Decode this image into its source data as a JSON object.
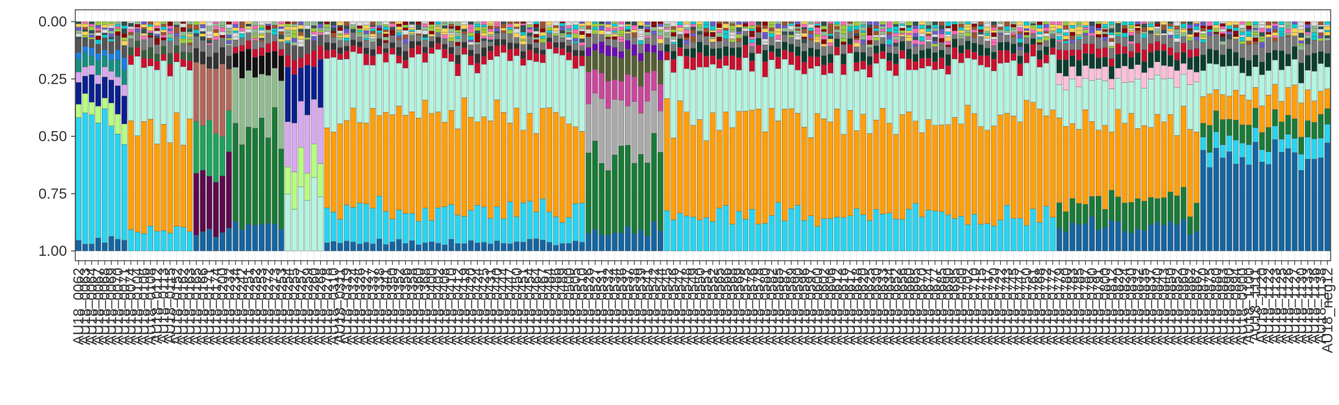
{
  "chart_data": {
    "type": "bar",
    "stacked": true,
    "title": "",
    "xlabel": "",
    "ylabel": "",
    "y_axis_reversed": true,
    "ylim": [
      0,
      1.05
    ],
    "y_ticks": [
      0.0,
      0.25,
      0.5,
      0.75,
      1.0
    ],
    "y_tick_labels": [
      "0.00",
      "0.25",
      "0.50",
      "0.75",
      "1.00"
    ],
    "grid": true,
    "legend": "none",
    "bar_count": 192,
    "x_tick_labels": [
      "AU18_0062",
      "AU18_0063",
      "AU18_0064",
      "AU18_0067",
      "AU18_0068",
      "AU18_0069",
      "AU18_0070",
      "AU18_0071",
      "AU18_0074",
      "AU18_0104",
      "AU18_0106",
      "AU18_0108",
      "AU18_0112",
      "AU18_0113",
      "AU18_0115",
      "AU18_0152",
      "AU18_0162",
      "AU18_0163",
      "AU18_0165",
      "AU18_0166",
      "AU18_0171",
      "AU18_0174",
      "AU18_0200",
      "AU18_0232",
      "AU18_0234",
      "AU18_0242",
      "AU18_0251",
      "AU18_0252",
      "AU18_0253",
      "AU18_0272",
      "AU18_0273",
      "AU18_0253",
      "AU18_0254",
      "AU18_0255",
      "AU18_0257",
      "AU18_0259",
      "AU18_0260",
      "AU18_0268",
      "AU18_0278",
      "AU18_0310",
      "AU18_0311",
      "AU18_0319",
      "AU18_0324",
      "AU18_0326",
      "AU18_0327",
      "AU18_0337",
      "AU18_0338",
      "AU18_0341",
      "AU18_0350",
      "AU18_0352",
      "AU18_0356",
      "AU18_0358",
      "AU18_0360",
      "AU18_0368",
      "AU18_0400",
      "AU18_0402",
      "AU18_0408",
      "AU18_0410",
      "AU18_0412",
      "AU18_0419",
      "AU18_0420",
      "AU18_0424",
      "AU18_0425",
      "AU18_0431",
      "AU18_0440",
      "AU18_0444",
      "AU18_0447",
      "AU18_0450",
      "AU18_0451",
      "AU18_0454",
      "AU18_0464",
      "AU18_0467",
      "AU18_0484",
      "AU18_0486",
      "AU18_0489",
      "AU18_0500",
      "AU18_0505",
      "AU18_0510",
      "AU18_0526",
      "AU18_0527",
      "AU18_0531",
      "AU18_0532",
      "AU18_0534",
      "AU18_0536",
      "AU18_0537",
      "AU18_0538",
      "AU18_0539",
      "AU18_0541",
      "AU18_0542",
      "AU18_0544",
      "AU18_0545",
      "AU18_0546",
      "AU18_0547",
      "AU18_0548",
      "AU18_0549",
      "AU18_0550",
      "AU18_0551",
      "AU18_0552",
      "AU18_0565",
      "AU18_0566",
      "AU18_0568",
      "AU18_0569",
      "AU18_0575",
      "AU18_0576",
      "AU18_0578",
      "AU18_0580",
      "AU18_0582",
      "AU18_0585",
      "AU18_0587",
      "AU18_0589",
      "AU18_0590",
      "AU18_0596",
      "AU18_0597",
      "AU18_0600",
      "AU18_0602",
      "AU18_0606",
      "AU18_0612",
      "AU18_0616",
      "AU18_0617",
      "AU18_0618",
      "AU18_0620",
      "AU18_0625",
      "AU18_0630",
      "AU18_0633",
      "AU18_0634",
      "AU18_0652",
      "AU18_0656",
      "AU18_0660",
      "AU18_0665",
      "AU18_0670",
      "AU18_0674",
      "AU18_0677",
      "AU18_0685",
      "AU18_0690",
      "AU18_0695",
      "AU18_0700",
      "AU18_0702",
      "AU18_0710",
      "AU18_0715",
      "AU18_0717",
      "AU18_0720",
      "AU18_0722",
      "AU18_0743",
      "AU18_0745",
      "AU18_0747",
      "AU18_0750",
      "AU18_0761",
      "AU18_0768",
      "AU18_0772",
      "AU18_0777",
      "AU18_0779",
      "AU18_0780",
      "AU18_0783",
      "AU18_0785",
      "AU18_0787",
      "AU18_0790",
      "AU18_0791",
      "AU18_0800",
      "AU18_0812",
      "AU18_0820",
      "AU18_0824",
      "AU18_0830",
      "AU18_0832",
      "AU18_0835",
      "AU18_0837",
      "AU18_0840",
      "AU18_0843",
      "AU18_0850",
      "AU18_0852",
      "AU18_0860",
      "AU18_0862",
      "AU18_0867",
      "AU18_0870",
      "AU18_0875",
      "AU18_0880",
      "AU18_0883",
      "AU18_0890",
      "AU18_0894",
      "AU18_0900",
      "AU18_1100",
      "AU18_1111",
      "AU18_1120",
      "AU18_1122",
      "AU18_1123",
      "AU18_1125",
      "AU18_1126",
      "AU18_1127",
      "AU18_1130",
      "AU18_1133",
      "AU18_1136",
      "AU18_1138",
      "AU18_neg12"
    ],
    "composition_groups": [
      {
        "bars": 8,
        "segments": [
          [
            "#1565a0",
            0.05
          ],
          [
            "#29d4f0",
            0.55
          ],
          [
            "#b7ff80",
            0.08
          ],
          [
            "#0a1f8f",
            0.12
          ],
          [
            "#d8a8f0",
            0.05
          ],
          [
            "#148f80",
            0.06
          ],
          [
            "#1a7fe0",
            0.04
          ],
          [
            "#555555",
            0.05
          ]
        ]
      },
      {
        "bars": 10,
        "segments": [
          [
            "#29d4f0",
            0.1
          ],
          [
            "#ff9f0a",
            0.48
          ],
          [
            "#b3f5e0",
            0.3
          ],
          [
            "#c8102e",
            0.04
          ],
          [
            "#355e3b",
            0.04
          ],
          [
            "#777777",
            0.04
          ]
        ]
      },
      {
        "bars": 6,
        "segments": [
          [
            "#1565a0",
            0.08
          ],
          [
            "#5c0a4d",
            0.3
          ],
          [
            "#1fa35c",
            0.25
          ],
          [
            "#b0695a",
            0.25
          ],
          [
            "#333333",
            0.07
          ],
          [
            "#777777",
            0.05
          ]
        ]
      },
      {
        "bars": 8,
        "segments": [
          [
            "#1565a0",
            0.12
          ],
          [
            "#1a7a37",
            0.45
          ],
          [
            "#8fbc8f",
            0.25
          ],
          [
            "#111111",
            0.1
          ],
          [
            "#c8102e",
            0.04
          ],
          [
            "#777777",
            0.04
          ]
        ]
      },
      {
        "bars": 6,
        "segments": [
          [
            "#b3f5e0",
            0.25
          ],
          [
            "#b7ff80",
            0.18
          ],
          [
            "#d8a8f0",
            0.25
          ],
          [
            "#0a1f8f",
            0.2
          ],
          [
            "#c8102e",
            0.06
          ],
          [
            "#555555",
            0.06
          ]
        ]
      },
      {
        "bars": 40,
        "segments": [
          [
            "#1565a0",
            0.04
          ],
          [
            "#29d4f0",
            0.15
          ],
          [
            "#ff9f0a",
            0.45
          ],
          [
            "#b3f5e0",
            0.26
          ],
          [
            "#c8102e",
            0.04
          ],
          [
            "#333333",
            0.03
          ],
          [
            "#777777",
            0.03
          ]
        ]
      },
      {
        "bars": 12,
        "segments": [
          [
            "#1565a0",
            0.1
          ],
          [
            "#1a7a37",
            0.35
          ],
          [
            "#aaaaaa",
            0.25
          ],
          [
            "#c8479b",
            0.12
          ],
          [
            "#555f33",
            0.1
          ],
          [
            "#6a0dad",
            0.04
          ],
          [
            "#777777",
            0.04
          ]
        ]
      },
      {
        "bars": 60,
        "segments": [
          [
            "#29d4f0",
            0.16
          ],
          [
            "#ff9f0a",
            0.47
          ],
          [
            "#b3f5e0",
            0.25
          ],
          [
            "#c8102e",
            0.05
          ],
          [
            "#0b3d2e",
            0.04
          ],
          [
            "#777777",
            0.03
          ]
        ]
      },
      {
        "bars": 22,
        "segments": [
          [
            "#1565a0",
            0.12
          ],
          [
            "#1a7a37",
            0.12
          ],
          [
            "#ff9f0a",
            0.36
          ],
          [
            "#b3f5e0",
            0.2
          ],
          [
            "#ffc0d8",
            0.06
          ],
          [
            "#0b3d2e",
            0.06
          ],
          [
            "#c8102e",
            0.04
          ],
          [
            "#777777",
            0.04
          ]
        ]
      },
      {
        "bars": 20,
        "segments": [
          [
            "#1565a0",
            0.45
          ],
          [
            "#29d4f0",
            0.08
          ],
          [
            "#1a7a37",
            0.1
          ],
          [
            "#ff9f0a",
            0.12
          ],
          [
            "#b3f5e0",
            0.12
          ],
          [
            "#0b3d2e",
            0.07
          ],
          [
            "#777777",
            0.06
          ]
        ]
      }
    ]
  }
}
